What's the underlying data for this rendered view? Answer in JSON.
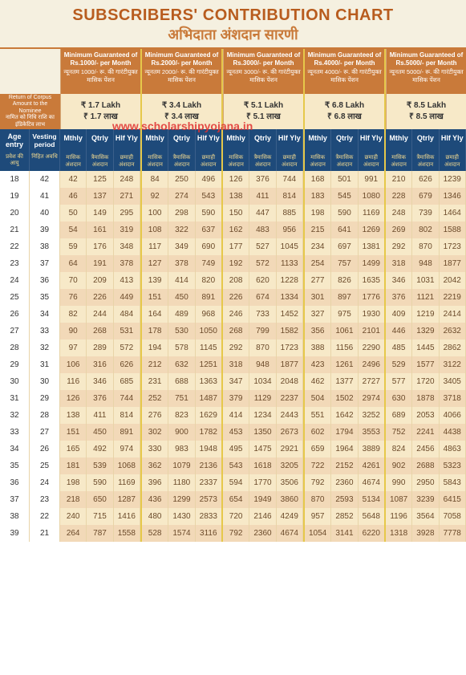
{
  "title_en": "SUBSCRIBERS' CONTRIBUTION CHART",
  "title_hi": "अभिदाता अंशदान सारणी",
  "watermark": "www.scholarshipyojana.in",
  "corpus": {
    "en": "Return of Corpus Amount to the Nominee",
    "hi": "नामित को निधि राशि का इंडिकेटिव लाभ"
  },
  "tiers": [
    {
      "guar_en": "Minimum Guaranteed of Rs.1000/- per Month",
      "guar_hi": "न्यूनतम 1000/- रू. की गारंटीयुक्त मासिक पेंशन",
      "lakh_en": "₹ 1.7 Lakh",
      "lakh_hi": "₹ 1.7 लाख"
    },
    {
      "guar_en": "Minimum Guaranteed of Rs.2000/- per Month",
      "guar_hi": "न्यूनतम 2000/- रू. की गारंटीयुक्त मासिक पेंशन",
      "lakh_en": "₹ 3.4 Lakh",
      "lakh_hi": "₹ 3.4 लाख"
    },
    {
      "guar_en": "Minimum Guaranteed of Rs.3000/- per Month",
      "guar_hi": "न्यूनतम 3000/- रू. की गारंटीयुक्त मासिक पेंशन",
      "lakh_en": "₹ 5.1 Lakh",
      "lakh_hi": "₹ 5.1 लाख"
    },
    {
      "guar_en": "Minimum Guaranteed of Rs.4000/- per Month",
      "guar_hi": "न्यूनतम 4000/- रू. की गारंटीयुक्त मासिक पेंशन",
      "lakh_en": "₹ 6.8 Lakh",
      "lakh_hi": "₹ 6.8 लाख"
    },
    {
      "guar_en": "Minimum Guaranteed of Rs.5000/- per Month",
      "guar_hi": "न्यूनतम 5000/- रू. की गारंटीयुक्त मासिक पेंशन",
      "lakh_en": "₹ 8.5 Lakh",
      "lakh_hi": "₹ 8.5 लाख"
    }
  ],
  "col_h": {
    "age_en": "Age entry",
    "age_hi": "प्रवेश की आयु",
    "vest_en": "Vesting period",
    "vest_hi": "निहित अवधि",
    "m": "Mthly",
    "q": "Qtrly",
    "h": "Hlf Yly",
    "m_hi": "मासिक अंशदान",
    "q_hi": "त्रैमासिक अंशदान",
    "h_hi": "छमाही अंशदान"
  },
  "rows": [
    {
      "age": 18,
      "vest": 42,
      "d": [
        42,
        125,
        248,
        84,
        250,
        496,
        126,
        376,
        744,
        168,
        501,
        991,
        210,
        626,
        1239
      ]
    },
    {
      "age": 19,
      "vest": 41,
      "d": [
        46,
        137,
        271,
        92,
        274,
        543,
        138,
        411,
        814,
        183,
        545,
        1080,
        228,
        679,
        1346
      ]
    },
    {
      "age": 20,
      "vest": 40,
      "d": [
        50,
        149,
        295,
        100,
        298,
        590,
        150,
        447,
        885,
        198,
        590,
        1169,
        248,
        739,
        1464
      ]
    },
    {
      "age": 21,
      "vest": 39,
      "d": [
        54,
        161,
        319,
        108,
        322,
        637,
        162,
        483,
        956,
        215,
        641,
        1269,
        269,
        802,
        1588
      ]
    },
    {
      "age": 22,
      "vest": 38,
      "d": [
        59,
        176,
        348,
        117,
        349,
        690,
        177,
        527,
        1045,
        234,
        697,
        1381,
        292,
        870,
        1723
      ]
    },
    {
      "age": 23,
      "vest": 37,
      "d": [
        64,
        191,
        378,
        127,
        378,
        749,
        192,
        572,
        1133,
        254,
        757,
        1499,
        318,
        948,
        1877
      ]
    },
    {
      "age": 24,
      "vest": 36,
      "d": [
        70,
        209,
        413,
        139,
        414,
        820,
        208,
        620,
        1228,
        277,
        826,
        1635,
        346,
        1031,
        2042
      ]
    },
    {
      "age": 25,
      "vest": 35,
      "d": [
        76,
        226,
        449,
        151,
        450,
        891,
        226,
        674,
        1334,
        301,
        897,
        1776,
        376,
        1121,
        2219
      ]
    },
    {
      "age": 26,
      "vest": 34,
      "d": [
        82,
        244,
        484,
        164,
        489,
        968,
        246,
        733,
        1452,
        327,
        975,
        1930,
        409,
        1219,
        2414
      ]
    },
    {
      "age": 27,
      "vest": 33,
      "d": [
        90,
        268,
        531,
        178,
        530,
        1050,
        268,
        799,
        1582,
        356,
        1061,
        2101,
        446,
        1329,
        2632
      ]
    },
    {
      "age": 28,
      "vest": 32,
      "d": [
        97,
        289,
        572,
        194,
        578,
        1145,
        292,
        870,
        1723,
        388,
        1156,
        2290,
        485,
        1445,
        2862
      ]
    },
    {
      "age": 29,
      "vest": 31,
      "d": [
        106,
        316,
        626,
        212,
        632,
        1251,
        318,
        948,
        1877,
        423,
        1261,
        2496,
        529,
        1577,
        3122
      ]
    },
    {
      "age": 30,
      "vest": 30,
      "d": [
        116,
        346,
        685,
        231,
        688,
        1363,
        347,
        1034,
        2048,
        462,
        1377,
        2727,
        577,
        1720,
        3405
      ]
    },
    {
      "age": 31,
      "vest": 29,
      "d": [
        126,
        376,
        744,
        252,
        751,
        1487,
        379,
        1129,
        2237,
        504,
        1502,
        2974,
        630,
        1878,
        3718
      ]
    },
    {
      "age": 32,
      "vest": 28,
      "d": [
        138,
        411,
        814,
        276,
        823,
        1629,
        414,
        1234,
        2443,
        551,
        1642,
        3252,
        689,
        2053,
        4066
      ]
    },
    {
      "age": 33,
      "vest": 27,
      "d": [
        151,
        450,
        891,
        302,
        900,
        1782,
        453,
        1350,
        2673,
        602,
        1794,
        3553,
        752,
        2241,
        4438
      ]
    },
    {
      "age": 34,
      "vest": 26,
      "d": [
        165,
        492,
        974,
        330,
        983,
        1948,
        495,
        1475,
        2921,
        659,
        1964,
        3889,
        824,
        2456,
        4863
      ]
    },
    {
      "age": 35,
      "vest": 25,
      "d": [
        181,
        539,
        1068,
        362,
        1079,
        2136,
        543,
        1618,
        3205,
        722,
        2152,
        4261,
        902,
        2688,
        5323
      ]
    },
    {
      "age": 36,
      "vest": 24,
      "d": [
        198,
        590,
        1169,
        396,
        1180,
        2337,
        594,
        1770,
        3506,
        792,
        2360,
        4674,
        990,
        2950,
        5843
      ]
    },
    {
      "age": 37,
      "vest": 23,
      "d": [
        218,
        650,
        1287,
        436,
        1299,
        2573,
        654,
        1949,
        3860,
        870,
        2593,
        5134,
        1087,
        3239,
        6415
      ]
    },
    {
      "age": 38,
      "vest": 22,
      "d": [
        240,
        715,
        1416,
        480,
        1430,
        2833,
        720,
        2146,
        4249,
        957,
        2852,
        5648,
        1196,
        3564,
        7058
      ]
    },
    {
      "age": 39,
      "vest": 21,
      "d": [
        264,
        787,
        1558,
        528,
        1574,
        3116,
        792,
        2360,
        4674,
        1054,
        3141,
        6220,
        1318,
        3928,
        7778
      ]
    }
  ],
  "colors": {
    "header_bg": "#c97a3a",
    "dark_blue": "#1e4a7a",
    "cream": "#f5f0e0",
    "row_odd": "#f7e9c8",
    "row_even": "#f2d9b8",
    "gold": "#e6c84a",
    "text_brown": "#6b4a2a"
  }
}
